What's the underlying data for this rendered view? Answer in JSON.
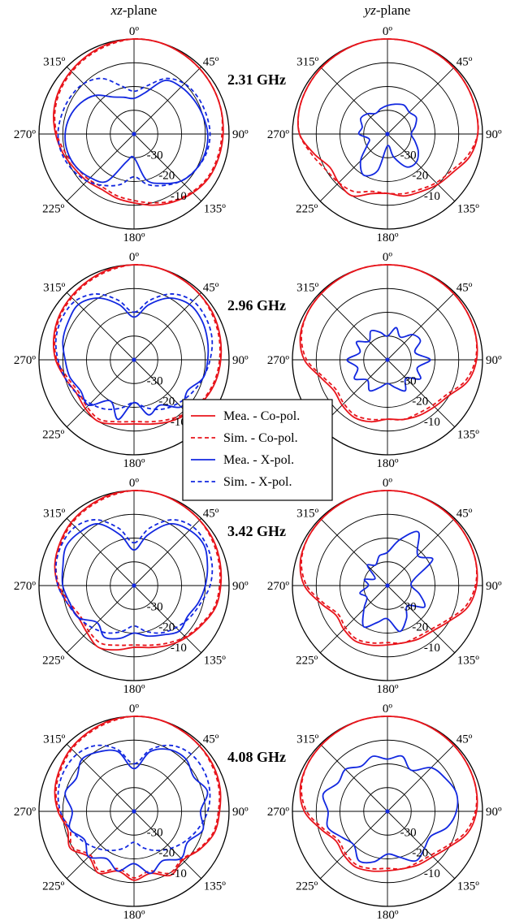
{
  "columns": [
    {
      "prefix": "xz",
      "suffix": "-plane"
    },
    {
      "prefix": "yz",
      "suffix": "-plane"
    }
  ],
  "colors": {
    "co_pol": "#e8141b",
    "x_pol": "#1228e0"
  },
  "legend": [
    {
      "label": "Mea. - Co-pol.",
      "color": "#e8141b",
      "style": "solid"
    },
    {
      "label": "Sim. - Co-pol.",
      "color": "#e8141b",
      "style": "dashed"
    },
    {
      "label": "Mea. - X-pol.",
      "color": "#1228e0",
      "style": "solid"
    },
    {
      "label": "Sim. - X-pol.",
      "color": "#1228e0",
      "style": "dashed"
    }
  ],
  "chart_data": [
    {
      "type": "polar-line",
      "frequency": "2.31 GHz",
      "angle_labels": [
        "0º",
        "45º",
        "90º",
        "135º",
        "180º",
        "225º",
        "270º",
        "315º"
      ],
      "radial_labels": [
        "-30",
        "-20",
        "-10"
      ],
      "radial_range_db": [
        -40,
        0
      ],
      "panels": [
        {
          "plane": "xz",
          "series": [
            {
              "name": "Mea. - Co-pol.",
              "values": [
                0,
                0,
                -0.5,
                -1,
                -1.5,
                -2,
                -2.5,
                -3,
                -3.5,
                -5,
                -7,
                -9,
                -11,
                -12,
                -13,
                -12,
                -11,
                -9,
                -7,
                -5,
                -3.5,
                -2.5,
                -1.5,
                -0.5
              ]
            },
            {
              "name": "Sim. - Co-pol.",
              "values": [
                0,
                0,
                -0.5,
                -1,
                -1.5,
                -2,
                -3,
                -3.5,
                -4,
                -5.5,
                -7.5,
                -10,
                -12,
                -13,
                -14,
                -13,
                -12,
                -10,
                -7.5,
                -5.5,
                -4,
                -3,
                -2,
                -1
              ]
            },
            {
              "name": "Mea. - X-pol.",
              "values": [
                -25,
                -22,
                -14,
                -12,
                -11,
                -10,
                -9,
                -9,
                -10,
                -12,
                -16,
                -20,
                -30,
                -28,
                -17,
                -14,
                -12,
                -11,
                -11,
                -12,
                -14,
                -17,
                -22,
                -24
              ]
            },
            {
              "name": "Sim. - X-pol.",
              "values": [
                -22,
                -19,
                -13,
                -10,
                -9,
                -8.5,
                -8,
                -8.5,
                -10,
                -12,
                -15,
                -18,
                -22,
                -18,
                -15,
                -12,
                -10,
                -8.5,
                -8,
                -8.5,
                -9,
                -10,
                -13,
                -19
              ]
            }
          ]
        },
        {
          "plane": "yz",
          "series": [
            {
              "name": "Mea. - Co-pol.",
              "values": [
                0,
                0,
                -0.3,
                -0.6,
                -1,
                -1.5,
                -2,
                -4,
                -8,
                -10,
                -12,
                -13,
                -15,
                -14,
                -10,
                -11,
                -12,
                -8,
                -3,
                -1.5,
                -1,
                -0.6,
                -0.3,
                0
              ]
            },
            {
              "name": "Sim. - Co-pol.",
              "values": [
                0,
                0,
                -0.3,
                -0.6,
                -1,
                -1.5,
                -2,
                -5,
                -9,
                -11,
                -13,
                -14,
                -15,
                -15,
                -12,
                -11,
                -10,
                -7,
                -3,
                -1.5,
                -1,
                -0.6,
                -0.3,
                0
              ]
            },
            {
              "name": "Mea. - X-pol.",
              "values": [
                -28,
                -27,
                -26,
                -27,
                -26,
                -28,
                -30,
                -28,
                -25,
                -23,
                -24,
                -30,
                -35,
                -24,
                -20,
                -24,
                -30,
                -32,
                -28,
                -29,
                -27,
                -28,
                -30,
                -29
              ]
            }
          ]
        }
      ]
    },
    {
      "type": "polar-line",
      "frequency": "2.96 GHz",
      "angle_labels": [
        "0º",
        "45º",
        "90º",
        "135º",
        "180º",
        "225º",
        "270º",
        "315º"
      ],
      "radial_labels": [
        "-30",
        "-20",
        "-10"
      ],
      "radial_range_db": [
        -40,
        0
      ],
      "panels": [
        {
          "plane": "xz",
          "series": [
            {
              "name": "Mea. - Co-pol.",
              "values": [
                0,
                0,
                -0.5,
                -1,
                -1.5,
                -2.5,
                -3.5,
                -4.5,
                -6,
                -8,
                -10,
                -12,
                -13,
                -12,
                -10,
                -11,
                -12,
                -10,
                -7,
                -5,
                -3.5,
                -2.5,
                -1.5,
                -0.5
              ]
            },
            {
              "name": "Sim. - Co-pol.",
              "values": [
                0,
                0,
                -0.5,
                -1,
                -2,
                -3,
                -4,
                -5,
                -6.5,
                -8.5,
                -11,
                -13,
                -14,
                -13,
                -11,
                -12,
                -13,
                -11,
                -7.5,
                -5.5,
                -4,
                -3,
                -2,
                -1
              ]
            },
            {
              "name": "Mea. - X-pol.",
              "values": [
                -22,
                -16,
                -10,
                -7,
                -7,
                -8,
                -9,
                -10,
                -14,
                -12,
                -18,
                -16,
                -22,
                -14,
                -20,
                -13,
                -14,
                -12,
                -11,
                -9,
                -8,
                -7,
                -10,
                -16
              ]
            },
            {
              "name": "Sim. - X-pol.",
              "values": [
                -20,
                -14,
                -8,
                -5,
                -5,
                -6,
                -8,
                -10,
                -12,
                -14,
                -16,
                -19,
                -22,
                -19,
                -16,
                -14,
                -12,
                -10,
                -8,
                -6,
                -5,
                -5,
                -8,
                -14
              ]
            }
          ]
        },
        {
          "plane": "yz",
          "series": [
            {
              "name": "Mea. - Co-pol.",
              "values": [
                0,
                0,
                -0.3,
                -0.6,
                -1,
                -1.5,
                -2.5,
                -5,
                -10,
                -12,
                -13,
                -14,
                -15,
                -13,
                -12,
                -13,
                -14,
                -11,
                -5,
                -2,
                -1,
                -0.6,
                -0.3,
                0
              ]
            },
            {
              "name": "Sim. - Co-pol.",
              "values": [
                0,
                0,
                -0.3,
                -0.6,
                -1,
                -1.5,
                -3,
                -6,
                -11,
                -13,
                -14,
                -14,
                -15,
                -14,
                -13,
                -14,
                -15,
                -12,
                -6,
                -2.5,
                -1,
                -0.6,
                -0.3,
                0
              ]
            },
            {
              "name": "Mea. - X-pol.",
              "values": [
                -30,
                -26,
                -29,
                -25,
                -24,
                -28,
                -22,
                -27,
                -24,
                -29,
                -25,
                -28,
                -30,
                -28,
                -25,
                -28,
                -24,
                -27,
                -23,
                -28,
                -25,
                -29,
                -26,
                -28
              ]
            }
          ]
        }
      ]
    },
    {
      "type": "polar-line",
      "frequency": "3.42 GHz",
      "angle_labels": [
        "0º",
        "45º",
        "90º",
        "135º",
        "180º",
        "225º",
        "270º",
        "315º"
      ],
      "radial_labels": [
        "-30",
        "-20",
        "-10"
      ],
      "radial_range_db": [
        -40,
        0
      ],
      "panels": [
        {
          "plane": "xz",
          "series": [
            {
              "name": "Mea. - Co-pol.",
              "values": [
                0,
                0,
                -0.5,
                -1,
                -1.5,
                -2.5,
                -3.5,
                -4.5,
                -7,
                -9,
                -11,
                -13,
                -14,
                -12,
                -10,
                -12,
                -13,
                -11,
                -8,
                -5.5,
                -4,
                -2.5,
                -1.5,
                -0.5
              ]
            },
            {
              "name": "Sim. - Co-pol.",
              "values": [
                0,
                0,
                -0.5,
                -1,
                -2,
                -3,
                -4,
                -5,
                -7.5,
                -9.5,
                -12,
                -14,
                -15,
                -14,
                -12,
                -13,
                -14,
                -12,
                -8.5,
                -6,
                -4.5,
                -3,
                -2,
                -1
              ]
            },
            {
              "name": "Mea. - X-pol.",
              "values": [
                -25,
                -18,
                -10,
                -7,
                -6,
                -8,
                -10,
                -12,
                -14,
                -13,
                -16,
                -18,
                -20,
                -17,
                -15,
                -18,
                -13,
                -12,
                -10,
                -9,
                -7,
                -8,
                -10,
                -18
              ]
            },
            {
              "name": "Sim. - X-pol.",
              "values": [
                -22,
                -15,
                -8,
                -5,
                -5,
                -6,
                -8,
                -11,
                -13,
                -15,
                -17,
                -20,
                -23,
                -20,
                -17,
                -15,
                -13,
                -11,
                -8,
                -6,
                -5,
                -5,
                -8,
                -15
              ]
            }
          ]
        },
        {
          "plane": "yz",
          "series": [
            {
              "name": "Mea. - Co-pol.",
              "values": [
                0,
                0,
                -0.3,
                -0.6,
                -1,
                -1.5,
                -2.5,
                -5,
                -10,
                -13,
                -14,
                -15,
                -15,
                -14,
                -13,
                -14,
                -15,
                -11,
                -5,
                -2,
                -1,
                -0.6,
                -0.3,
                0
              ]
            },
            {
              "name": "Sim. - Co-pol.",
              "values": [
                0,
                0,
                -0.3,
                -0.6,
                -1,
                -1.5,
                -3,
                -6,
                -11,
                -14,
                -15,
                -15,
                -16,
                -15,
                -14,
                -15,
                -16,
                -12,
                -6,
                -2.5,
                -1,
                -0.6,
                -0.3,
                0
              ]
            },
            {
              "name": "Mea. - X-pol.",
              "values": [
                -26,
                -20,
                -14,
                -22,
                -18,
                -28,
                -30,
                -26,
                -22,
                -28,
                -24,
                -20,
                -26,
                -24,
                -20,
                -26,
                -30,
                -28,
                -32,
                -30,
                -34,
                -28,
                -30,
                -27
              ]
            }
          ]
        }
      ]
    },
    {
      "type": "polar-line",
      "frequency": "4.08 GHz",
      "angle_labels": [
        "0º",
        "45º",
        "90º",
        "135º",
        "180º",
        "225º",
        "270º",
        "315º"
      ],
      "radial_labels": [
        "-30",
        "-20",
        "-10"
      ],
      "radial_range_db": [
        -40,
        0
      ],
      "panels": [
        {
          "plane": "xz",
          "series": [
            {
              "name": "Mea. - Co-pol.",
              "values": [
                0,
                0,
                -0.5,
                -1,
                -1.5,
                -2.5,
                -4,
                -5,
                -8,
                -11,
                -9,
                -13,
                -11,
                -14,
                -10,
                -13,
                -9,
                -11,
                -8,
                -5.5,
                -4,
                -2.5,
                -1.5,
                -0.5
              ]
            },
            {
              "name": "Sim. - Co-pol.",
              "values": [
                0,
                0,
                -0.5,
                -1,
                -2,
                -3,
                -4.5,
                -5.5,
                -8.5,
                -11.5,
                -10,
                -14,
                -12,
                -15,
                -11,
                -14,
                -10,
                -12,
                -8.5,
                -6,
                -4.5,
                -3,
                -2,
                -1
              ]
            },
            {
              "name": "Mea. - X-pol.",
              "values": [
                -22,
                -14,
                -10,
                -9,
                -11,
                -8,
                -12,
                -10,
                -14,
                -12,
                -16,
                -13,
                -18,
                -14,
                -17,
                -13,
                -16,
                -12,
                -14,
                -10,
                -12,
                -9,
                -11,
                -14
              ]
            },
            {
              "name": "Sim. - X-pol.",
              "values": [
                -20,
                -13,
                -8,
                -6,
                -6,
                -7,
                -9,
                -12,
                -15,
                -18,
                -21,
                -24,
                -27,
                -24,
                -21,
                -18,
                -15,
                -12,
                -9,
                -7,
                -6,
                -6,
                -8,
                -13
              ]
            }
          ]
        },
        {
          "plane": "yz",
          "series": [
            {
              "name": "Mea. - Co-pol.",
              "values": [
                0,
                0,
                -0.3,
                -0.6,
                -1,
                -1.5,
                -2.5,
                -5,
                -10,
                -13,
                -14,
                -15,
                -15,
                -14,
                -13,
                -14,
                -15,
                -11,
                -5,
                -2,
                -1,
                -0.6,
                -0.3,
                0
              ]
            },
            {
              "name": "Sim. - Co-pol.",
              "values": [
                0,
                0,
                -0.3,
                -0.6,
                -1,
                -1.5,
                -3,
                -6,
                -11,
                -14,
                -15,
                -15,
                -16,
                -15,
                -14,
                -15,
                -16,
                -12,
                -6,
                -2.5,
                -1,
                -0.6,
                -0.3,
                0
              ]
            },
            {
              "name": "Mea. - X-pol.",
              "values": [
                -18,
                -16,
                -20,
                -14,
                -12,
                -10,
                -11,
                -14,
                -19,
                -18,
                -16,
                -20,
                -22,
                -18,
                -16,
                -20,
                -18,
                -14,
                -15,
                -12,
                -16,
                -15,
                -18,
                -16
              ]
            }
          ]
        }
      ]
    }
  ]
}
